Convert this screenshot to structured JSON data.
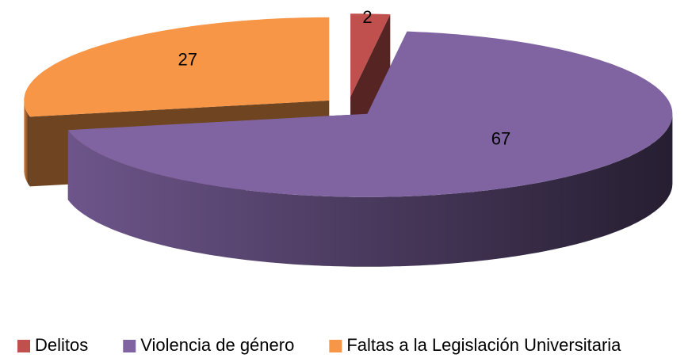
{
  "chart_data": {
    "type": "pie3d",
    "categories": [
      "Delitos",
      "Violencia de género",
      "Faltas a la Legislación Universitaria"
    ],
    "values": [
      2,
      67,
      27
    ],
    "colors": [
      "#c0504d",
      "#8064a2",
      "#f79646"
    ],
    "legend": "bottom"
  }
}
